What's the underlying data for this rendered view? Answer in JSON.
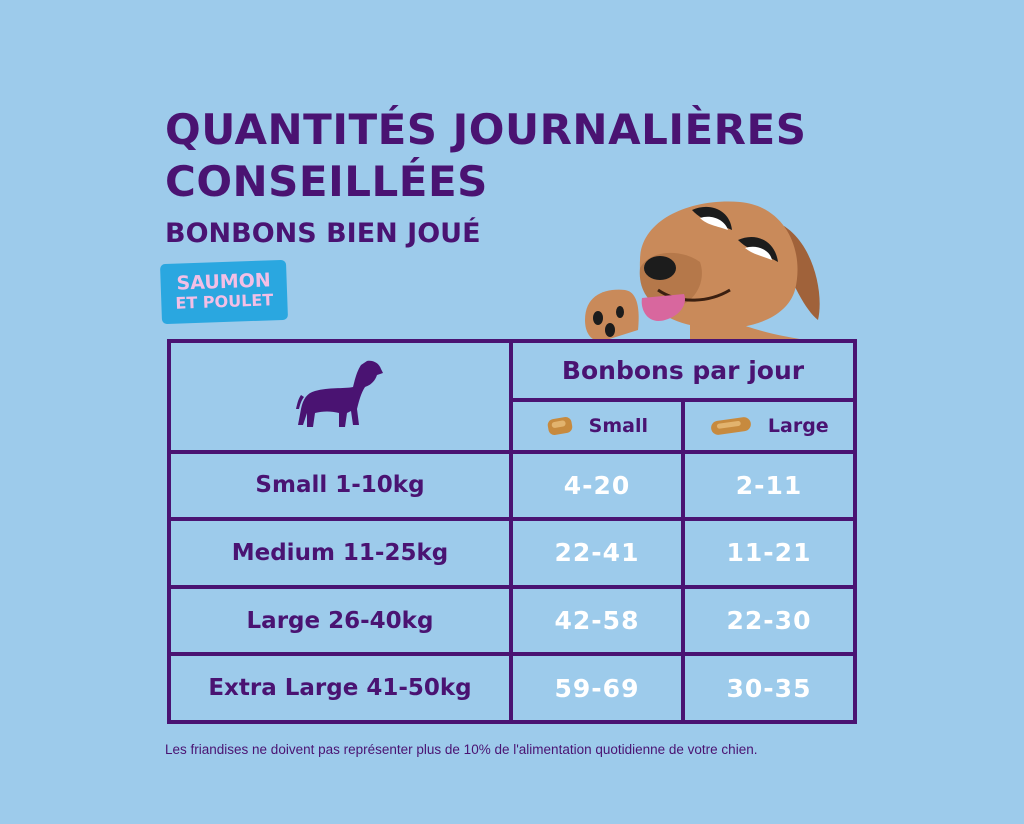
{
  "title": "QUANTITÉS JOURNALIÈRES CONSEILLÉES",
  "subtitle": "BONBONS BIEN JOUÉ",
  "flavor": {
    "line1": "SAUMON",
    "line2": "ET POULET"
  },
  "colors": {
    "background": "#9dcbeb",
    "brand": "#4a1372",
    "badge": "#2aa7e0",
    "badge_text": "#f3bfe6"
  },
  "table": {
    "header_main": "Bonbons par jour",
    "col_small": "Small",
    "col_large": "Large",
    "corner_icon": "dog-silhouette-icon",
    "rows": [
      {
        "label": "Small 1-10kg",
        "small": "4-20",
        "large": "2-11"
      },
      {
        "label": "Medium 11-25kg",
        "small": "22-41",
        "large": "11-21"
      },
      {
        "label": "Large 26-40kg",
        "small": "42-58",
        "large": "22-30"
      },
      {
        "label": "Extra Large 41-50kg",
        "small": "59-69",
        "large": "30-35"
      }
    ]
  },
  "footnote": "Les friandises ne doivent pas représenter plus de 10% de l'alimentation quotidienne de votre chien."
}
